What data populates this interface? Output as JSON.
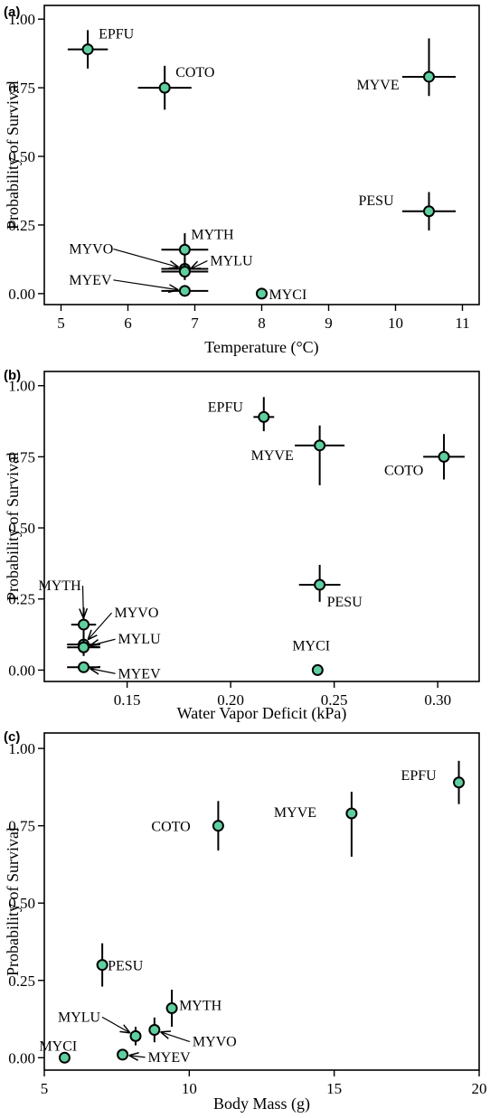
{
  "chart_data": [
    {
      "type": "scatter",
      "title": "(a)",
      "xlabel": "Temperature (°C)",
      "ylabel": "Probability of Survival",
      "xlim": [
        4.75,
        11.25
      ],
      "ylim": [
        -0.04,
        1.05
      ],
      "xticks": [
        5,
        6,
        7,
        8,
        9,
        10,
        11
      ],
      "yticks": [
        0,
        0.25,
        0.5,
        0.75,
        1.0
      ],
      "ytick_labels": [
        "0.00",
        "0.25",
        "0.50",
        "0.75",
        "1.00"
      ],
      "marker_color": "#5fcfa0",
      "points": [
        {
          "label": "EPFU",
          "x": 5.4,
          "y": 0.89,
          "xerr": 0.3,
          "yerr": [
            0.07,
            0.07
          ]
        },
        {
          "label": "COTO",
          "x": 6.55,
          "y": 0.75,
          "xerr": 0.4,
          "yerr": [
            0.08,
            0.08
          ]
        },
        {
          "label": "MYVE",
          "x": 10.5,
          "y": 0.79,
          "xerr": 0.4,
          "yerr": [
            0.07,
            0.14
          ]
        },
        {
          "label": "PESU",
          "x": 10.5,
          "y": 0.3,
          "xerr": 0.4,
          "yerr": [
            0.07,
            0.07
          ]
        },
        {
          "label": "MYTH",
          "x": 6.85,
          "y": 0.16,
          "xerr": 0.35,
          "yerr": [
            0.06,
            0.06
          ]
        },
        {
          "label": "MYVO",
          "x": 6.85,
          "y": 0.09,
          "xerr": 0.35,
          "yerr": [
            0.04,
            0.04
          ]
        },
        {
          "label": "MYLU",
          "x": 6.85,
          "y": 0.08,
          "xerr": 0.35,
          "yerr": [
            0.03,
            0.03
          ]
        },
        {
          "label": "MYEV",
          "x": 6.85,
          "y": 0.01,
          "xerr": 0.35,
          "yerr": [
            0,
            0
          ]
        },
        {
          "label": "MYCI",
          "x": 8.0,
          "y": 0.0,
          "xerr": 0,
          "yerr": [
            0,
            0
          ]
        }
      ]
    },
    {
      "type": "scatter",
      "title": "(b)",
      "xlabel": "Water Vapor Deficit (kPa)",
      "ylabel": "Probability of Survival",
      "xlim": [
        0.11,
        0.32
      ],
      "ylim": [
        -0.04,
        1.05
      ],
      "xticks": [
        0.15,
        0.2,
        0.25,
        0.3
      ],
      "xtick_labels": [
        "0.15",
        "0.20",
        "0.25",
        "0.30"
      ],
      "yticks": [
        0,
        0.25,
        0.5,
        0.75,
        1.0
      ],
      "ytick_labels": [
        "0.00",
        "0.25",
        "0.50",
        "0.75",
        "1.00"
      ],
      "marker_color": "#5fcfa0",
      "points": [
        {
          "label": "EPFU",
          "x": 0.216,
          "y": 0.89,
          "xerr": 0.005,
          "yerr": [
            0.05,
            0.07
          ]
        },
        {
          "label": "MYVE",
          "x": 0.243,
          "y": 0.79,
          "xerr": 0.012,
          "yerr": [
            0.14,
            0.07
          ]
        },
        {
          "label": "COTO",
          "x": 0.303,
          "y": 0.75,
          "xerr": 0.01,
          "yerr": [
            0.08,
            0.08
          ]
        },
        {
          "label": "PESU",
          "x": 0.243,
          "y": 0.3,
          "xerr": 0.01,
          "yerr": [
            0.06,
            0.07
          ]
        },
        {
          "label": "MYTH",
          "x": 0.129,
          "y": 0.16,
          "xerr": 0.006,
          "yerr": [
            0.06,
            0.06
          ]
        },
        {
          "label": "MYVO",
          "x": 0.129,
          "y": 0.09,
          "xerr": 0.008,
          "yerr": [
            0.04,
            0.04
          ]
        },
        {
          "label": "MYLU",
          "x": 0.129,
          "y": 0.08,
          "xerr": 0.008,
          "yerr": [
            0.03,
            0.03
          ]
        },
        {
          "label": "MYEV",
          "x": 0.129,
          "y": 0.01,
          "xerr": 0.008,
          "yerr": [
            0,
            0
          ]
        },
        {
          "label": "MYCI",
          "x": 0.242,
          "y": 0.0,
          "xerr": 0,
          "yerr": [
            0,
            0
          ]
        }
      ]
    },
    {
      "type": "scatter",
      "title": "(c)",
      "xlabel": "Body Mass (g)",
      "ylabel": "Probability of Survival",
      "xlim": [
        5,
        20
      ],
      "ylim": [
        -0.04,
        1.05
      ],
      "xticks": [
        5,
        10,
        15,
        20
      ],
      "yticks": [
        0,
        0.25,
        0.5,
        0.75,
        1.0
      ],
      "ytick_labels": [
        "0.00",
        "0.25",
        "0.50",
        "0.75",
        "1.00"
      ],
      "marker_color": "#5fcfa0",
      "points": [
        {
          "label": "EPFU",
          "x": 19.3,
          "y": 0.89,
          "xerr": 0,
          "yerr": [
            0.07,
            0.07
          ]
        },
        {
          "label": "MYVE",
          "x": 15.6,
          "y": 0.79,
          "xerr": 0,
          "yerr": [
            0.14,
            0.07
          ]
        },
        {
          "label": "COTO",
          "x": 11.0,
          "y": 0.75,
          "xerr": 0,
          "yerr": [
            0.08,
            0.08
          ]
        },
        {
          "label": "PESU",
          "x": 7.0,
          "y": 0.3,
          "xerr": 0,
          "yerr": [
            0.07,
            0.07
          ]
        },
        {
          "label": "MYTH",
          "x": 9.4,
          "y": 0.16,
          "xerr": 0,
          "yerr": [
            0.06,
            0.06
          ]
        },
        {
          "label": "MYVO",
          "x": 8.8,
          "y": 0.09,
          "xerr": 0,
          "yerr": [
            0.04,
            0.04
          ]
        },
        {
          "label": "MYLU",
          "x": 8.15,
          "y": 0.07,
          "xerr": 0,
          "yerr": [
            0.03,
            0.03
          ]
        },
        {
          "label": "MYEV",
          "x": 7.7,
          "y": 0.01,
          "xerr": 0,
          "yerr": [
            0,
            0
          ]
        },
        {
          "label": "MYCI",
          "x": 5.7,
          "y": 0.0,
          "xerr": 0,
          "yerr": [
            0,
            0
          ]
        }
      ]
    }
  ]
}
